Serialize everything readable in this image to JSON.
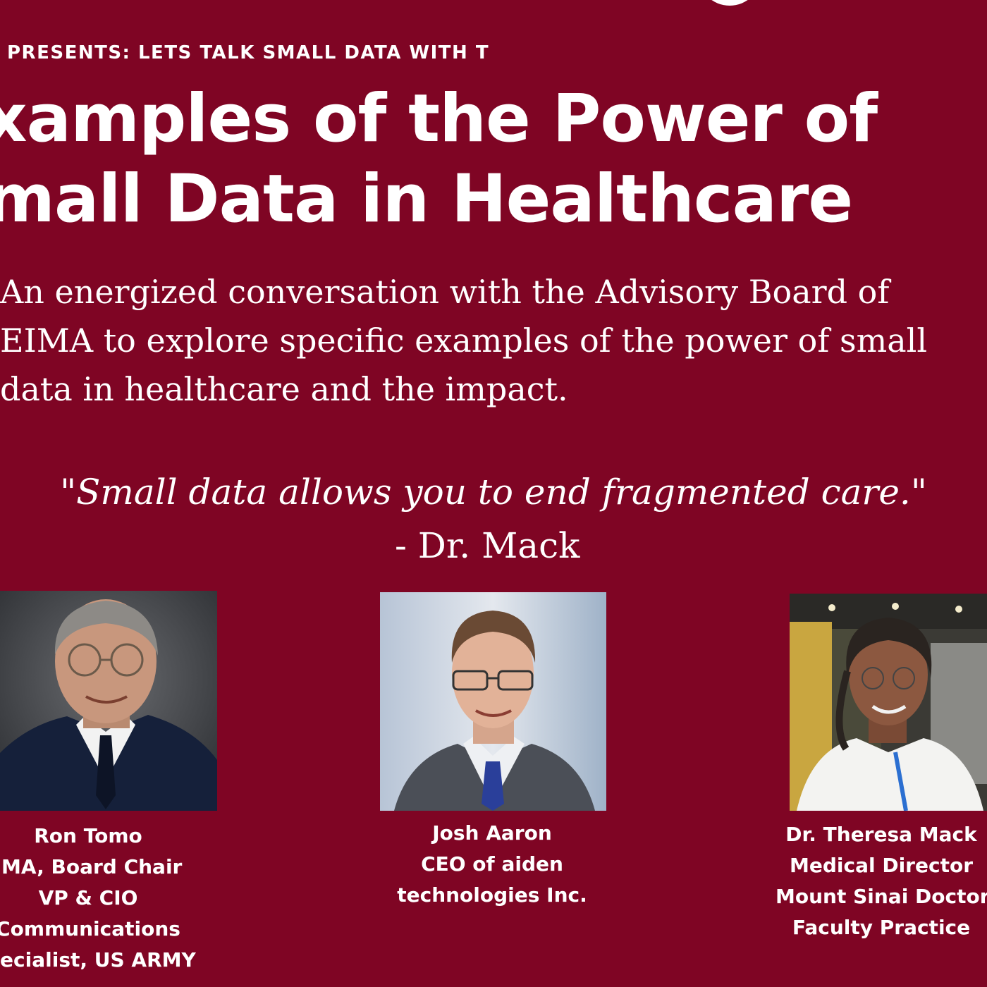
{
  "header": {
    "presents": "PRESENTS: LETS TALK SMALL DATA WITH T",
    "title_line1": "xamples of the Power of",
    "title_line2": "mall Data in Healthcare"
  },
  "description": {
    "line1": "An energized conversation with the Advisory Board of",
    "line2": "EIMA to explore specific examples of the power of small",
    "line3": "data in healthcare and the impact."
  },
  "quote": {
    "text": "\"Small data allows you to end fragmented care.\"",
    "author": "- Dr. Mack"
  },
  "speakers": [
    {
      "name": "Ron Tomo",
      "lines": [
        "IMA, Board Chair",
        "VP & CIO",
        "Communications",
        "pecialist, US ARMY"
      ]
    },
    {
      "name": "Josh Aaron",
      "lines": [
        "CEO of aiden",
        "technologies Inc."
      ]
    },
    {
      "name": "Dr. Theresa Mack",
      "lines": [
        "Medical Director",
        "Mount Sinai Doctor",
        "Faculty Practice"
      ]
    }
  ],
  "colors": {
    "background": "#7f0524",
    "text": "#ffffff"
  }
}
